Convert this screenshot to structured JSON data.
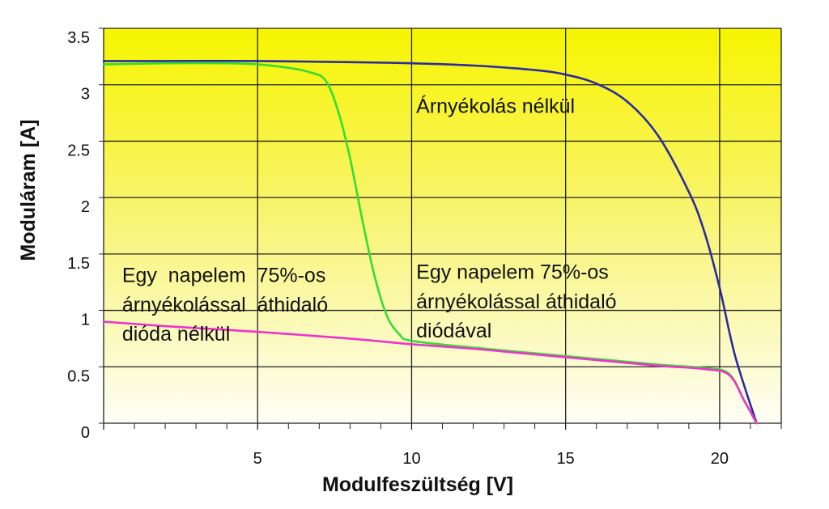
{
  "chart_data": {
    "type": "line",
    "xlabel": "Modulfeszültség [V]",
    "ylabel": "Moduláram [A]",
    "xlim": [
      0,
      22
    ],
    "ylim": [
      0,
      3.5
    ],
    "x_ticks": [
      5,
      10,
      15,
      20
    ],
    "y_ticks": [
      0,
      0.5,
      1,
      1.5,
      2,
      2.5,
      3,
      3.5
    ],
    "y_tick_labels": [
      "0",
      "0.5",
      "1",
      "1.5",
      "2",
      "2.5",
      "3",
      "3.5"
    ],
    "grid": true,
    "background": "yellow-to-white vertical gradient",
    "series": [
      {
        "color": "#2b2b9e",
        "x": [
          0,
          2,
          5,
          8,
          10,
          12,
          14,
          15,
          16,
          17,
          18,
          19,
          19.5,
          20,
          20.5,
          21.2
        ],
        "y": [
          3.21,
          3.21,
          3.21,
          3.2,
          3.19,
          3.17,
          3.13,
          3.09,
          3.01,
          2.85,
          2.55,
          2.05,
          1.7,
          1.2,
          0.6,
          0.0
        ]
      },
      {
        "color": "#33dd33",
        "x": [
          0,
          2,
          4,
          5,
          6,
          6.7,
          7.2,
          7.6,
          8.0,
          8.4,
          8.8,
          9.2,
          9.6,
          10,
          12,
          14,
          16,
          18,
          19.5,
          20.3,
          20.8,
          21.2
        ],
        "y": [
          3.18,
          3.19,
          3.19,
          3.18,
          3.15,
          3.11,
          3.04,
          2.78,
          2.35,
          1.8,
          1.3,
          0.95,
          0.79,
          0.73,
          0.67,
          0.62,
          0.57,
          0.52,
          0.49,
          0.44,
          0.2,
          0.0
        ]
      },
      {
        "color": "#ee33cc",
        "x": [
          0,
          2,
          5,
          8,
          10,
          12,
          14,
          16,
          18,
          19.5,
          20.3,
          20.8,
          21.2
        ],
        "y": [
          0.9,
          0.86,
          0.81,
          0.75,
          0.7,
          0.66,
          0.61,
          0.56,
          0.51,
          0.48,
          0.43,
          0.2,
          0.0
        ]
      }
    ],
    "annotations": [
      {
        "lines": [
          "Árnyékolás nélkül"
        ],
        "x": 10.15,
        "y": 2.75
      },
      {
        "lines": [
          "Egy  napelem  75%-os",
          "árnyékolással  áthidaló",
          "dióda nélkül"
        ],
        "x": 0.6,
        "y": 1.25
      },
      {
        "lines": [
          "Egy napelem 75%-os",
          "árnyékolással áthidaló",
          "diódával"
        ],
        "x": 10.15,
        "y": 1.28
      }
    ]
  }
}
